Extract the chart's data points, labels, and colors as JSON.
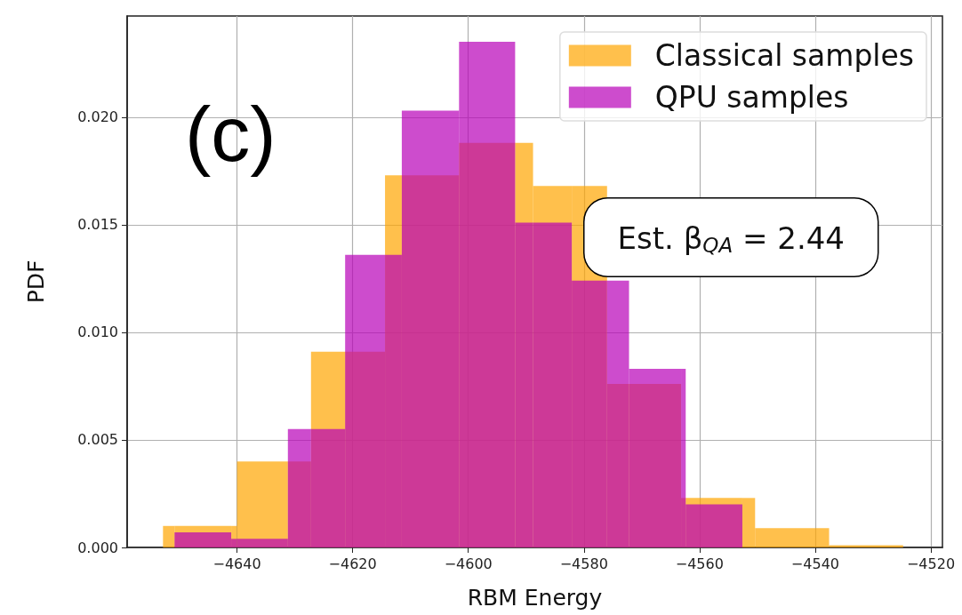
{
  "chart_data": {
    "type": "histogram",
    "xlabel": "RBM Energy",
    "ylabel": "PDF",
    "xlim": [
      -4659,
      -4518
    ],
    "xticks": [
      {
        "value": -4640,
        "label": "−4640"
      },
      {
        "value": -4620,
        "label": "−4620"
      },
      {
        "value": -4600,
        "label": "−4600"
      },
      {
        "value": -4580,
        "label": "−4580"
      },
      {
        "value": -4560,
        "label": "−4560"
      },
      {
        "value": -4540,
        "label": "−4540"
      },
      {
        "value": -4520,
        "label": "−4520"
      }
    ],
    "ylim": [
      0,
      0.0247
    ],
    "yticks": [
      {
        "value": 0,
        "label": "0.000"
      },
      {
        "value": 0.005,
        "label": "0.005"
      },
      {
        "value": 0.01,
        "label": "0.010"
      },
      {
        "value": 0.015,
        "label": "0.015"
      },
      {
        "value": 0.02,
        "label": "0.020"
      }
    ],
    "grid": true,
    "legend": "top right",
    "bins": [
      -4652.8,
      -4650.8,
      -4641.0,
      -4640.0,
      -4631.2,
      -4627.2,
      -4621.3,
      -4614.4,
      -4611.5,
      -4601.6,
      -4591.9,
      -4588.8,
      -4582.1,
      -4576.0,
      -4572.2,
      -4563.2,
      -4562.4,
      -4552.6,
      -4550.4,
      -4537.6,
      -4524.8
    ],
    "series": [
      {
        "name": "Classical samples",
        "color": "#ffa500",
        "values": [
          0.001,
          0.001,
          0.001,
          0.004,
          0.004,
          0.0091,
          0.0091,
          0.0173,
          0.0173,
          0.0188,
          0.0188,
          0.0168,
          0.0168,
          0.0076,
          0.0076,
          0.0023,
          0.0023,
          0.0023,
          0.0009,
          0.0001
        ]
      },
      {
        "name": "QPU samples",
        "color": "#b800b8",
        "values": [
          null,
          0.0007,
          0.0004,
          0.0004,
          0.0055,
          0.0055,
          0.0136,
          0.0136,
          0.0203,
          0.0235,
          0.0151,
          0.0151,
          0.0124,
          0.0124,
          0.0083,
          0.0083,
          0.002,
          null,
          null,
          null
        ]
      }
    ],
    "annotations": [
      "(c)",
      "Est. β$_{QA}$ = 2.44"
    ]
  }
}
